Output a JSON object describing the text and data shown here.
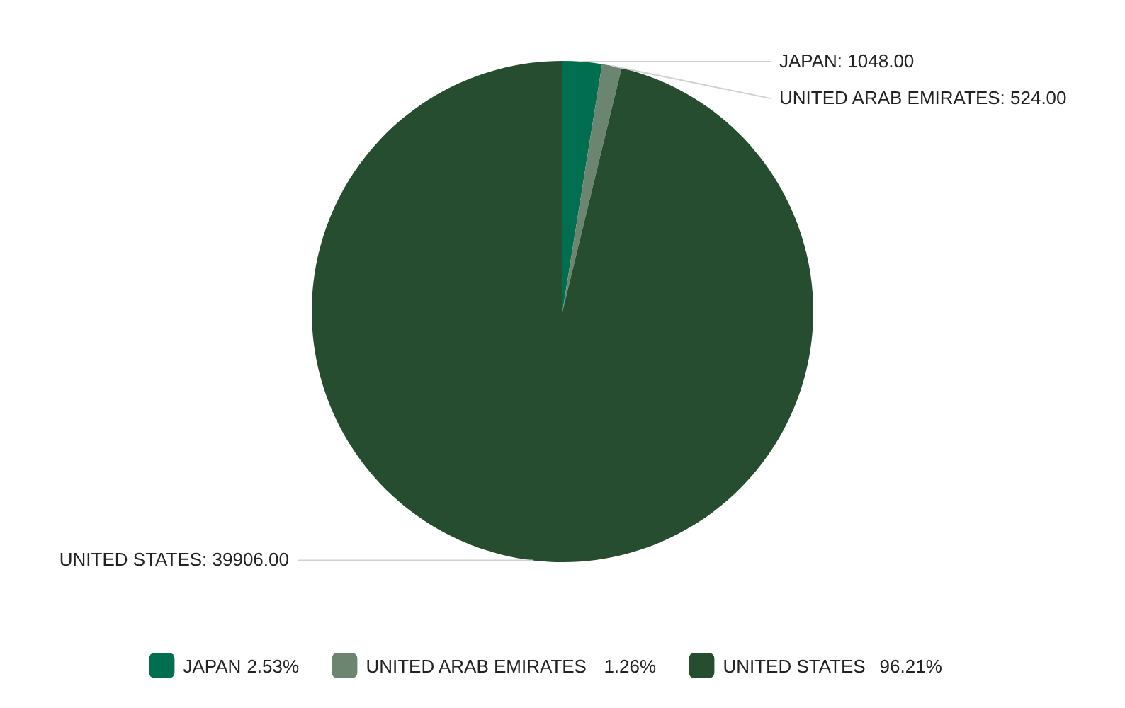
{
  "chart_data": {
    "type": "pie",
    "categories": [
      "JAPAN",
      "UNITED ARAB EMIRATES",
      "UNITED STATES"
    ],
    "values": [
      1048,
      524,
      39906
    ],
    "value_labels": [
      "JAPAN: 1048.00",
      "UNITED ARAB EMIRATES: 524.00",
      "UNITED STATES: 39906.00"
    ],
    "colors": [
      "#006e4f",
      "#6b8571",
      "#264d30"
    ],
    "legend": "bottom",
    "annotations": [
      "2.53%",
      "1.26%",
      "96.21%"
    ]
  }
}
